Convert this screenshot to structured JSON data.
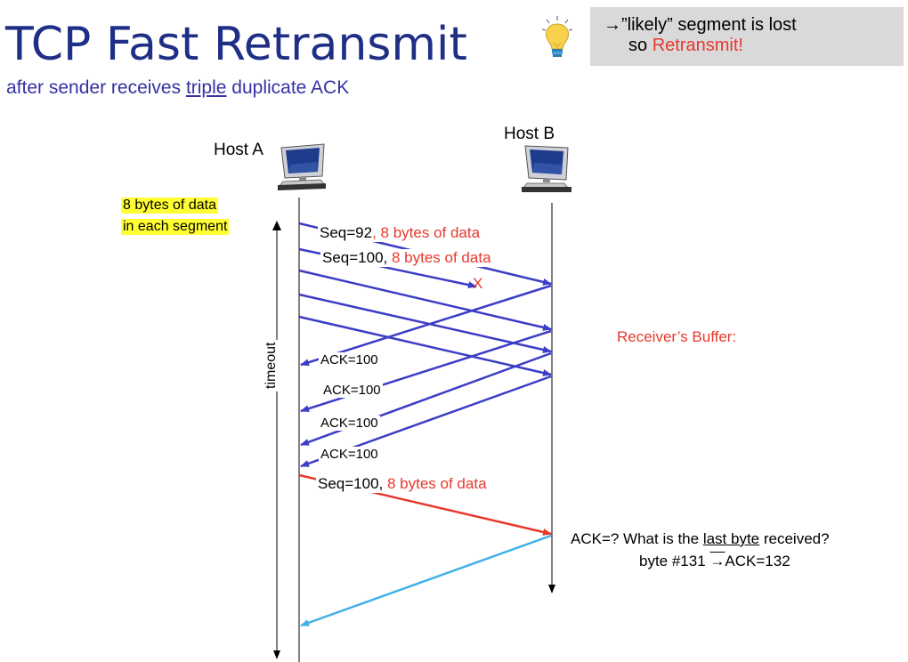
{
  "title": "TCP Fast Retransmit",
  "subtitle": {
    "pre": "after sender receives ",
    "underlined": "triple",
    "post": " duplicate ACK"
  },
  "callout": {
    "arrow": "→",
    "line1": "”likely” segment is lost",
    "line2_pre": "so ",
    "line2_red": "Retransmit!"
  },
  "hosts": {
    "a": "Host A",
    "b": "Host B"
  },
  "note": {
    "line1": "8 bytes of data",
    "line2": "in each segment"
  },
  "segments": {
    "seq92_pre": "Seq=92",
    "seq92_red": ", 8 bytes of data",
    "seq100_pre": "Seq=100, ",
    "seq100_red": "8 bytes of data",
    "lost_mark": "X",
    "retrans_pre": "Seq=100, ",
    "retrans_red": "8 bytes of data"
  },
  "acks": [
    "ACK=100",
    "ACK=100",
    "ACK=100",
    "ACK=100"
  ],
  "timeout_label": "timeout",
  "receiver_buffer": "Receiver’s Buffer:",
  "question": {
    "line1_pre": "ACK=?  What is the ",
    "line1_u": "last byte",
    "line1_post": " received?",
    "line2_pre": "byte #131  ",
    "line2_arrow": "→",
    "line2_post": "ACK=132"
  },
  "colors": {
    "title": "#1f2f86",
    "segment_arrow": "#3c3cc6",
    "retransmit_arrow": "#e8382c",
    "final_ack_arrow": "#3fb0e8",
    "highlight": "#ffff33",
    "callout_bg": "#d9d9d9"
  }
}
